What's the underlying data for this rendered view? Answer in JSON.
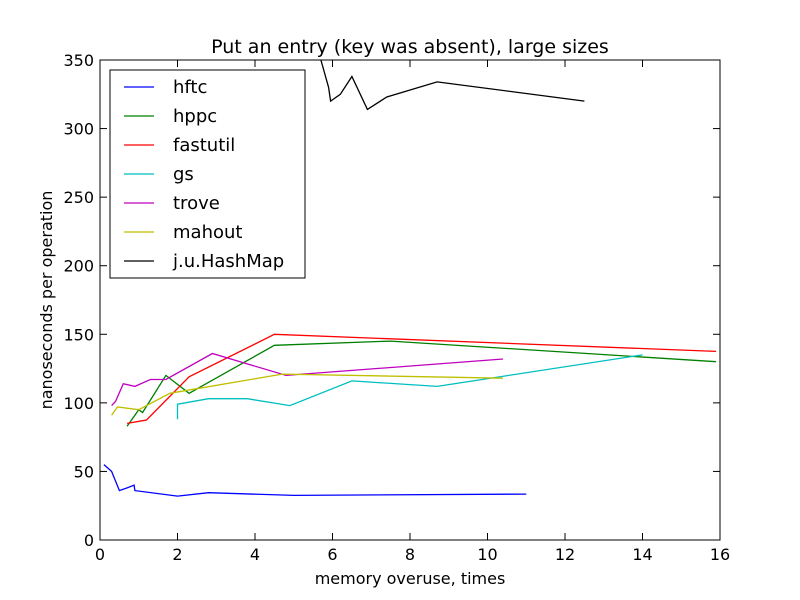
{
  "chart_data": {
    "type": "line",
    "title": "Put an entry (key was absent), large sizes",
    "xlabel": "memory overuse, times",
    "ylabel": "nanoseconds per operation",
    "xlim": [
      0,
      16
    ],
    "ylim": [
      0,
      350
    ],
    "xticks": [
      0,
      2,
      4,
      6,
      8,
      10,
      12,
      14,
      16
    ],
    "yticks": [
      0,
      50,
      100,
      150,
      200,
      250,
      300,
      350
    ],
    "grid": false,
    "legend_position": "top-left",
    "series": [
      {
        "name": "hftc",
        "color": "#0000ff",
        "points": [
          [
            0.1,
            55
          ],
          [
            0.3,
            50
          ],
          [
            0.5,
            36
          ],
          [
            0.7,
            38
          ],
          [
            0.88,
            40
          ],
          [
            0.9,
            36
          ],
          [
            2.0,
            32
          ],
          [
            2.8,
            34.5
          ],
          [
            5.0,
            32.5
          ],
          [
            11.0,
            33.5
          ]
        ]
      },
      {
        "name": "hppc",
        "color": "#008000",
        "points": [
          [
            0.7,
            83
          ],
          [
            1.0,
            95
          ],
          [
            1.1,
            93
          ],
          [
            1.7,
            120
          ],
          [
            2.3,
            107
          ],
          [
            4.5,
            142
          ],
          [
            7.5,
            145
          ],
          [
            15.9,
            130
          ]
        ]
      },
      {
        "name": "fastutil",
        "color": "#ff0000",
        "points": [
          [
            0.7,
            85
          ],
          [
            1.1,
            87
          ],
          [
            1.2,
            87.5
          ],
          [
            2.3,
            119
          ],
          [
            4.5,
            150
          ],
          [
            15.9,
            137.5
          ]
        ]
      },
      {
        "name": "gs",
        "color": "#00bfbf",
        "points": [
          [
            2.0,
            88
          ],
          [
            2.0,
            99
          ],
          [
            2.8,
            103
          ],
          [
            3.8,
            103
          ],
          [
            4.9,
            98
          ],
          [
            6.5,
            116
          ],
          [
            8.7,
            112
          ],
          [
            14.0,
            135
          ]
        ]
      },
      {
        "name": "trove",
        "color": "#bf00bf",
        "points": [
          [
            0.3,
            98
          ],
          [
            0.4,
            101
          ],
          [
            0.6,
            114
          ],
          [
            0.9,
            112
          ],
          [
            1.3,
            117
          ],
          [
            1.7,
            117
          ],
          [
            2.9,
            136
          ],
          [
            4.8,
            120
          ],
          [
            10.4,
            132
          ]
        ]
      },
      {
        "name": "mahout",
        "color": "#bfbf00",
        "points": [
          [
            0.3,
            91
          ],
          [
            0.45,
            97
          ],
          [
            1.0,
            95
          ],
          [
            1.8,
            107
          ],
          [
            4.7,
            121
          ],
          [
            10.4,
            118
          ]
        ]
      },
      {
        "name": "j.u.HashMap",
        "color": "#000000",
        "points": [
          [
            5.7,
            350
          ],
          [
            5.9,
            330
          ],
          [
            5.95,
            320
          ],
          [
            6.2,
            325
          ],
          [
            6.5,
            338
          ],
          [
            6.9,
            314
          ],
          [
            7.4,
            323
          ],
          [
            8.7,
            334
          ],
          [
            12.5,
            320
          ]
        ]
      }
    ]
  }
}
